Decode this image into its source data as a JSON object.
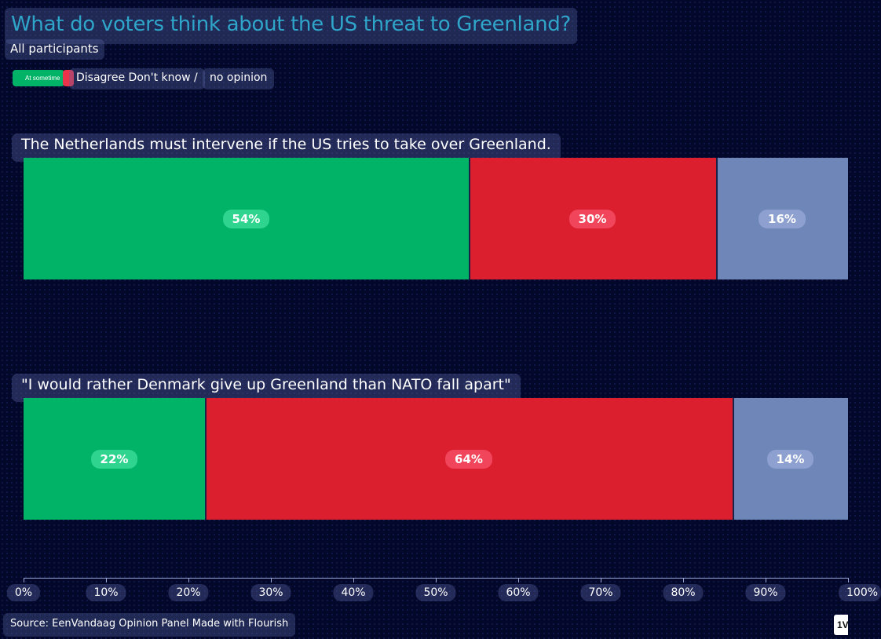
{
  "chart_data": {
    "type": "bar",
    "orientation": "horizontal",
    "stacked": true,
    "title": "What do voters think about the US threat to Greenland?",
    "subtitle": "All participants",
    "legend": [
      {
        "label": "At sometime",
        "color": "#00b367"
      },
      {
        "label": "Disagree Don't know /",
        "color": "#db1f2f"
      },
      {
        "label": "no opinion",
        "color": "#6f86b9"
      }
    ],
    "categories": [
      "The Netherlands must intervene if the US tries to take over Greenland.",
      "\"I would rather Denmark give up Greenland than NATO fall apart\""
    ],
    "series": [
      {
        "name": "At sometime",
        "values": [
          54,
          22
        ],
        "color": "#00b367",
        "label_bg": "#2fd48e"
      },
      {
        "name": "Disagree",
        "values": [
          30,
          64
        ],
        "color": "#db1f2f",
        "label_bg": "#f0455a"
      },
      {
        "name": "Don't know / no opinion",
        "values": [
          16,
          14
        ],
        "color": "#6f86b9",
        "label_bg": "#8da0cf"
      }
    ],
    "x_ticks": [
      "0%",
      "10%",
      "20%",
      "30%",
      "40%",
      "50%",
      "60%",
      "70%",
      "80%",
      "90%",
      "100%"
    ],
    "xlim": [
      0,
      100
    ],
    "source": "Source: EenVandaag Opinion Panel Made with Flourish",
    "corner_badge": "1V"
  }
}
